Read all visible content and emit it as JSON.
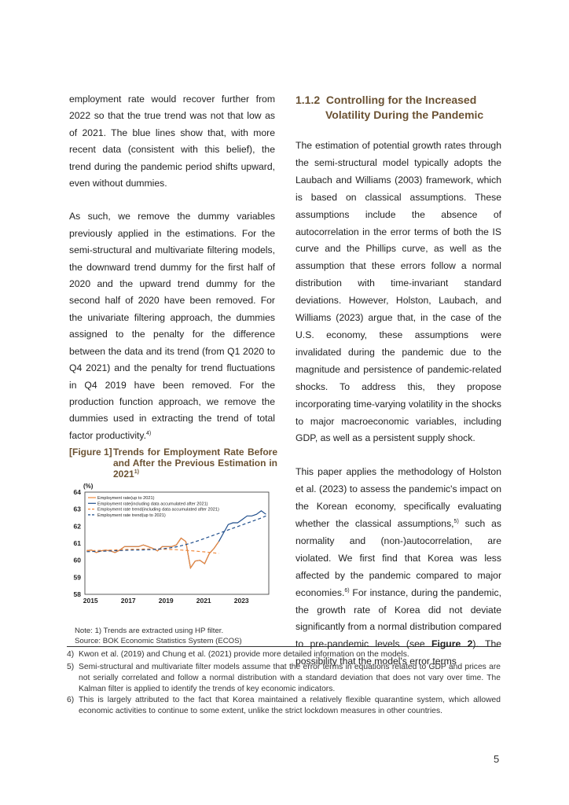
{
  "left_column": {
    "para1": "employment rate would recover further from 2022 so that the true trend was not that low as of 2021. The blue lines show that, with more recent data (consistent with this belief), the trend during the pandemic period shifts upward, even without dummies.",
    "para2": "As such, we remove the dummy variables previously applied in the estimations. For the semi-structural and multivariate filtering models, the downward trend dummy for the first half of 2020 and the upward trend dummy for the second half of 2020 have been removed. For the univariate filtering approach, the dummies assigned to the penalty for the difference between the data and its trend (from Q1 2020 to Q4 2021) and the penalty for trend fluctuations in Q4 2019 have been removed. For the production function approach, we remove the dummies used in extracting the trend of total factor productivity.",
    "para2_ref": "4)"
  },
  "figure": {
    "label": "[Figure 1]",
    "title": "Trends for Employment Rate Before and After the Previous Estimation in 2021",
    "title_ref": "1)",
    "note": "Note: 1) Trends are extracted using HP filter.",
    "source": "Source: BOK Economic Statistics System (ECOS)"
  },
  "chart_data": {
    "type": "line",
    "ylabel": "(%)",
    "ylim": [
      58,
      64
    ],
    "yticks": [
      "58",
      "59",
      "60",
      "61",
      "62",
      "63",
      "64"
    ],
    "xticks": [
      "2015",
      "2017",
      "2019",
      "2021",
      "2023"
    ],
    "x_start": "2014Q4",
    "frequency": "quarterly",
    "legend_position": "top-left",
    "series": [
      {
        "name": "Employment rate(up to 2021)",
        "color": "#f0883a",
        "style": "solid",
        "values": [
          60.57,
          60.6,
          60.45,
          60.55,
          60.6,
          60.55,
          60.45,
          60.6,
          60.8,
          60.8,
          60.8,
          60.8,
          60.9,
          60.8,
          60.7,
          60.55,
          60.8,
          60.8,
          60.8,
          60.9,
          61.3,
          61.1,
          59.55,
          59.95,
          60.0,
          59.8,
          60.4,
          60.7,
          61.1
        ]
      },
      {
        "name": "Employment rate(including data accumulated after 2021)",
        "color": "#1f4e8c",
        "style": "solid",
        "values": [
          60.57,
          60.6,
          60.45,
          60.55,
          60.6,
          60.55,
          60.45,
          60.6,
          60.8,
          60.8,
          60.8,
          60.8,
          60.9,
          60.8,
          60.7,
          60.55,
          60.8,
          60.8,
          60.8,
          60.9,
          61.3,
          61.1,
          59.55,
          59.95,
          60.0,
          59.8,
          60.4,
          60.7,
          61.1,
          61.6,
          62.1,
          62.2,
          62.2,
          62.4,
          62.6,
          62.6,
          62.7,
          62.9,
          62.7
        ]
      },
      {
        "name": "Employment rate trend(including data accumulated after 2021)",
        "color": "#f0883a",
        "style": "dashed",
        "values": [
          60.55,
          60.56,
          60.57,
          60.58,
          60.59,
          60.6,
          60.61,
          60.62,
          60.63,
          60.64,
          60.65,
          60.65,
          60.66,
          60.66,
          60.66,
          60.65,
          60.65,
          60.64,
          60.63,
          60.62,
          60.6,
          60.58,
          60.56,
          60.54,
          60.51,
          60.49,
          60.46,
          60.43,
          60.4
        ]
      },
      {
        "name": "Employment rate trend(up to 2021)",
        "color": "#1f4e8c",
        "style": "dashed",
        "values": [
          60.5,
          60.51,
          60.52,
          60.53,
          60.54,
          60.55,
          60.56,
          60.57,
          60.58,
          60.59,
          60.6,
          60.6,
          60.61,
          60.62,
          60.63,
          60.65,
          60.67,
          60.7,
          60.74,
          60.79,
          60.85,
          60.92,
          61.0,
          61.09,
          61.18,
          61.28,
          61.38,
          61.48,
          61.58,
          61.68,
          61.78,
          61.88,
          61.98,
          62.08,
          62.18,
          62.28,
          62.38,
          62.48,
          62.6
        ]
      }
    ]
  },
  "right_column": {
    "heading_num": "1.1.2",
    "heading_line1": "Controlling for the Increased",
    "heading_line2": "Volatility During the Pandemic",
    "para1": "The estimation of potential growth rates through the semi-structural model typically adopts the Laubach and Williams (2003) framework, which is based on classical assumptions. These assumptions include the absence of autocorrelation in the error terms of both the IS curve and the Phillips curve, as well as the assumption that these errors follow a normal distribution with time-invariant standard deviations. However, Holston, Laubach, and Williams (2023) argue that, in the case of the U.S. economy, these assumptions were invalidated during the pandemic due to the magnitude and persistence of pandemic-related shocks. To address this, they propose incorporating time-varying volatility in the shocks to major macroeconomic variables, including GDP, as well as a persistent supply shock.",
    "para2_a": "This paper applies the methodology of Holston et al. (2023) to assess the pandemic's impact on the Korean economy, specifically evaluating whether the classical assumptions,",
    "para2_ref1": "5)",
    "para2_b": " such as normality and (non-)autocorrelation, are violated. We first find that Korea was less affected by the pandemic compared to major economies.",
    "para2_ref2": "6)",
    "para2_c": " For instance, during the pandemic, the growth rate of Korea did not deviate significantly from a normal distribution compared to pre-pandemic levels (see ",
    "para2_figref": "Figure 2",
    "para2_d": "). The possibility that the model's error terms"
  },
  "footnotes": [
    {
      "num": "4)",
      "text": "Kwon et al. (2019) and Chung et al. (2021) provide more detailed information on the models."
    },
    {
      "num": "5)",
      "text": "Semi-structural and multivariate filter models assume that the error terms in equations related to GDP and prices are not serially correlated and follow a normal distribution with a standard deviation that does not vary over time. The Kalman filter is applied to identify the trends of key economic indicators."
    },
    {
      "num": "6)",
      "text": "This is largely attributed to the fact that Korea maintained a relatively flexible quarantine system, which allowed economic activities to continue to some extent, unlike the strict lockdown measures in other countries."
    }
  ],
  "page_number": "5"
}
